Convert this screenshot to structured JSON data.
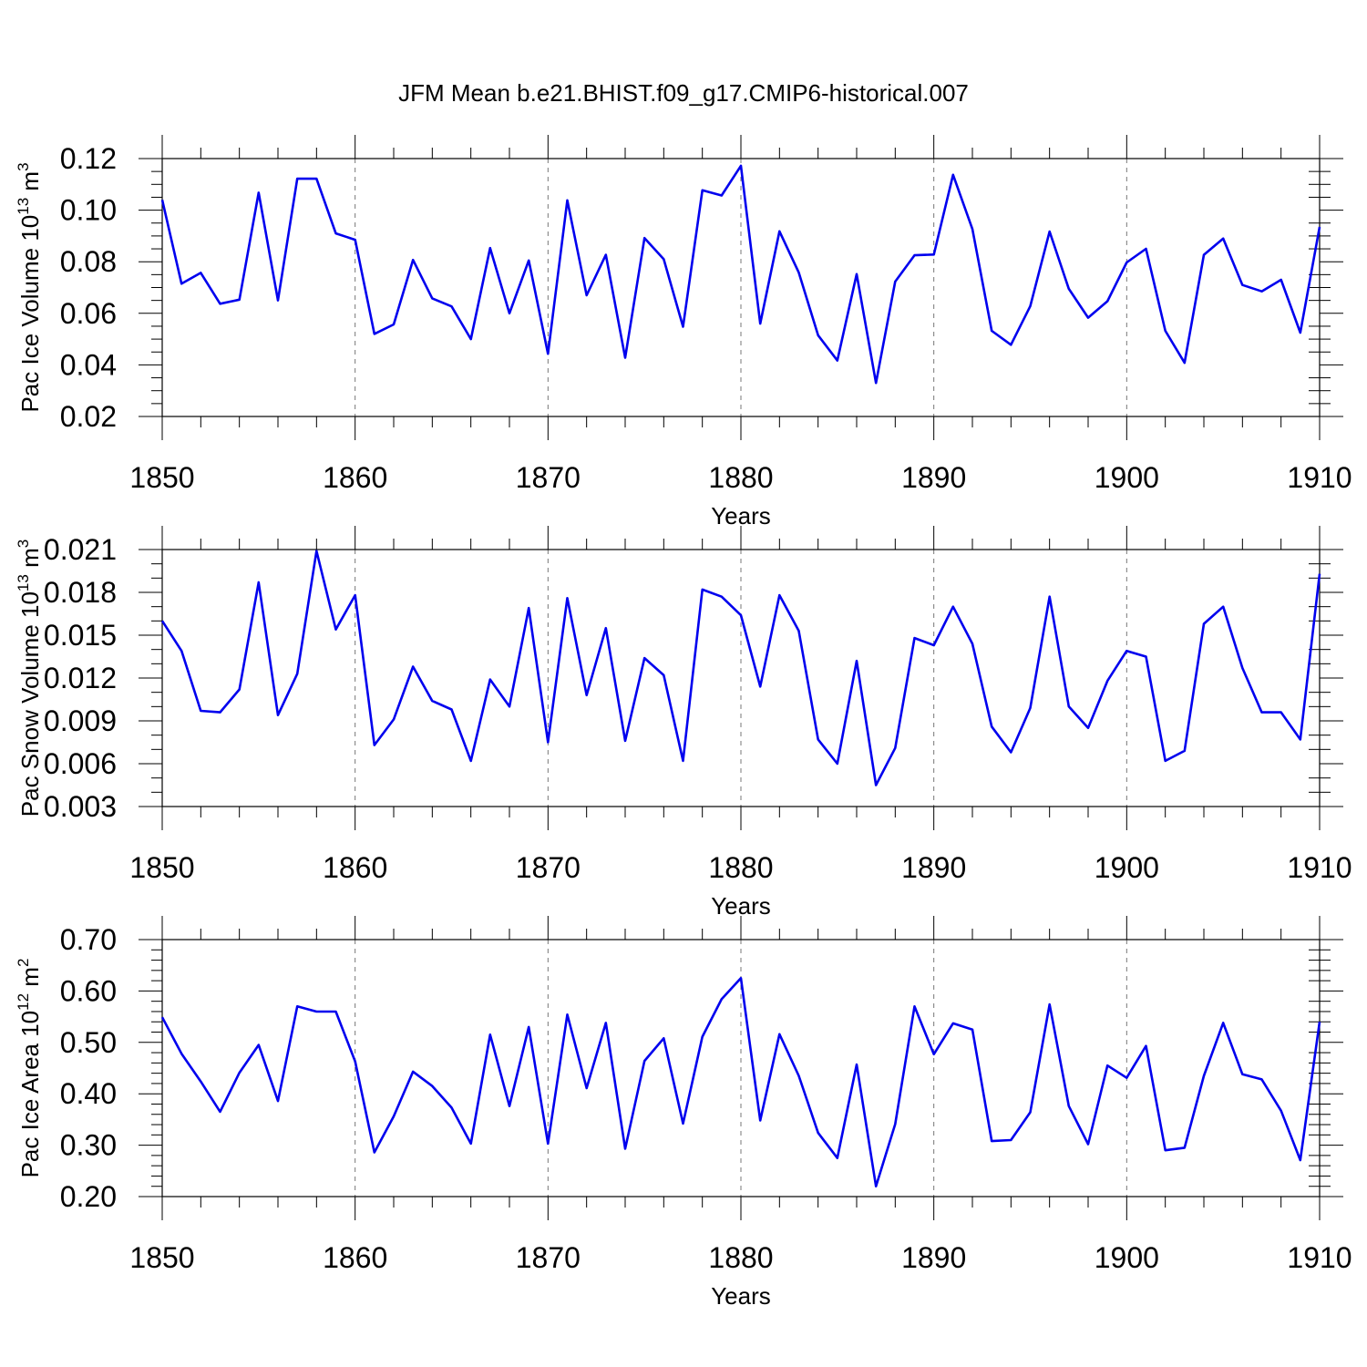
{
  "figure": {
    "title": "JFM Mean b.e21.BHIST.f09_g17.CMIP6-historical.007"
  },
  "chart_data": [
    {
      "type": "line",
      "ylabel_main": "Pac Ice Volume 10",
      "ylabel_exp": "13",
      "ylabel_unit": " m",
      "ylabel_unit_exp": "3",
      "xlabel": "Years",
      "xlim": [
        1850,
        1910
      ],
      "ylim": [
        0.02,
        0.12
      ],
      "xticks": [
        "1850",
        "1860",
        "1870",
        "1880",
        "1890",
        "1900",
        "1910"
      ],
      "xtick_values": [
        1850,
        1860,
        1870,
        1880,
        1890,
        1900,
        1910
      ],
      "yticks": [
        "0.02",
        "0.04",
        "0.06",
        "0.08",
        "0.10",
        "0.12"
      ],
      "ytick_values": [
        0.02,
        0.04,
        0.06,
        0.08,
        0.1,
        0.12
      ],
      "y_minor_step": 0.005,
      "line_color": "#0000ee",
      "grid": "vertical dashed at major x ticks",
      "x": [
        1850,
        1851,
        1852,
        1853,
        1854,
        1855,
        1856,
        1857,
        1858,
        1859,
        1860,
        1861,
        1862,
        1863,
        1864,
        1865,
        1866,
        1867,
        1868,
        1869,
        1870,
        1871,
        1872,
        1873,
        1874,
        1875,
        1876,
        1877,
        1878,
        1879,
        1880,
        1881,
        1882,
        1883,
        1884,
        1885,
        1886,
        1887,
        1888,
        1889,
        1890,
        1891,
        1892,
        1893,
        1894,
        1895,
        1896,
        1897,
        1898,
        1899,
        1900,
        1901,
        1902,
        1903,
        1904,
        1905,
        1906,
        1907,
        1908,
        1909,
        1910
      ],
      "values": [
        0.104,
        0.0715,
        0.0757,
        0.0637,
        0.0653,
        0.1068,
        0.065,
        0.1122,
        0.1122,
        0.091,
        0.0885,
        0.052,
        0.0557,
        0.0807,
        0.0658,
        0.0627,
        0.05,
        0.0853,
        0.06,
        0.0805,
        0.0443,
        0.1038,
        0.067,
        0.0827,
        0.0428,
        0.0892,
        0.081,
        0.0548,
        0.1077,
        0.1057,
        0.1172,
        0.056,
        0.0918,
        0.0758,
        0.0515,
        0.0417,
        0.0752,
        0.033,
        0.0723,
        0.0825,
        0.0828,
        0.1137,
        0.0927,
        0.0532,
        0.0478,
        0.0628,
        0.0917,
        0.0695,
        0.0583,
        0.0647,
        0.0797,
        0.085,
        0.0532,
        0.0408,
        0.0827,
        0.089,
        0.071,
        0.0685,
        0.073,
        0.0525,
        0.0935
      ]
    },
    {
      "type": "line",
      "ylabel_main": "Pac Snow Volume 10",
      "ylabel_exp": "13",
      "ylabel_unit": " m",
      "ylabel_unit_exp": "3",
      "xlabel": "Years",
      "xlim": [
        1850,
        1910
      ],
      "ylim": [
        0.003,
        0.021
      ],
      "xticks": [
        "1850",
        "1860",
        "1870",
        "1880",
        "1890",
        "1900",
        "1910"
      ],
      "xtick_values": [
        1850,
        1860,
        1870,
        1880,
        1890,
        1900,
        1910
      ],
      "yticks": [
        "0.003",
        "0.006",
        "0.009",
        "0.012",
        "0.015",
        "0.018",
        "0.021"
      ],
      "ytick_values": [
        0.003,
        0.006,
        0.009,
        0.012,
        0.015,
        0.018,
        0.021
      ],
      "y_minor_step": 0.001,
      "line_color": "#0000ee",
      "grid": "vertical dashed at major x ticks",
      "x": [
        1850,
        1851,
        1852,
        1853,
        1854,
        1855,
        1856,
        1857,
        1858,
        1859,
        1860,
        1861,
        1862,
        1863,
        1864,
        1865,
        1866,
        1867,
        1868,
        1869,
        1870,
        1871,
        1872,
        1873,
        1874,
        1875,
        1876,
        1877,
        1878,
        1879,
        1880,
        1881,
        1882,
        1883,
        1884,
        1885,
        1886,
        1887,
        1888,
        1889,
        1890,
        1891,
        1892,
        1893,
        1894,
        1895,
        1896,
        1897,
        1898,
        1899,
        1900,
        1901,
        1902,
        1903,
        1904,
        1905,
        1906,
        1907,
        1908,
        1909,
        1910
      ],
      "values": [
        0.016,
        0.0139,
        0.0097,
        0.0096,
        0.0112,
        0.0187,
        0.0094,
        0.0123,
        0.0209,
        0.0154,
        0.0178,
        0.0073,
        0.0091,
        0.0128,
        0.0104,
        0.0098,
        0.0062,
        0.0119,
        0.01,
        0.0169,
        0.0075,
        0.0176,
        0.0108,
        0.0155,
        0.0076,
        0.0134,
        0.0122,
        0.0062,
        0.0182,
        0.0177,
        0.0164,
        0.0114,
        0.0178,
        0.0153,
        0.0077,
        0.006,
        0.0132,
        0.0045,
        0.0071,
        0.0148,
        0.0143,
        0.017,
        0.0144,
        0.0086,
        0.0068,
        0.0099,
        0.0177,
        0.01,
        0.0085,
        0.0118,
        0.0139,
        0.0135,
        0.0062,
        0.0069,
        0.0158,
        0.017,
        0.0127,
        0.0096,
        0.0096,
        0.0077,
        0.0193
      ]
    },
    {
      "type": "line",
      "ylabel_main": "Pac Ice Area 10",
      "ylabel_exp": "12",
      "ylabel_unit": " m",
      "ylabel_unit_exp": "2",
      "xlabel": "Years",
      "xlim": [
        1850,
        1910
      ],
      "ylim": [
        0.2,
        0.7
      ],
      "xticks": [
        "1850",
        "1860",
        "1870",
        "1880",
        "1890",
        "1900",
        "1910"
      ],
      "xtick_values": [
        1850,
        1860,
        1870,
        1880,
        1890,
        1900,
        1910
      ],
      "yticks": [
        "0.20",
        "0.30",
        "0.40",
        "0.50",
        "0.60",
        "0.70"
      ],
      "ytick_values": [
        0.2,
        0.3,
        0.4,
        0.5,
        0.6,
        0.7
      ],
      "y_minor_step": 0.02,
      "line_color": "#0000ee",
      "grid": "vertical dashed at major x ticks",
      "x": [
        1850,
        1851,
        1852,
        1853,
        1854,
        1855,
        1856,
        1857,
        1858,
        1859,
        1860,
        1861,
        1862,
        1863,
        1864,
        1865,
        1866,
        1867,
        1868,
        1869,
        1870,
        1871,
        1872,
        1873,
        1874,
        1875,
        1876,
        1877,
        1878,
        1879,
        1880,
        1881,
        1882,
        1883,
        1884,
        1885,
        1886,
        1887,
        1888,
        1889,
        1890,
        1891,
        1892,
        1893,
        1894,
        1895,
        1896,
        1897,
        1898,
        1899,
        1900,
        1901,
        1902,
        1903,
        1904,
        1905,
        1906,
        1907,
        1908,
        1909,
        1910
      ],
      "values": [
        0.549,
        0.478,
        0.424,
        0.365,
        0.441,
        0.495,
        0.386,
        0.57,
        0.56,
        0.56,
        0.463,
        0.286,
        0.356,
        0.443,
        0.415,
        0.373,
        0.303,
        0.515,
        0.376,
        0.53,
        0.303,
        0.554,
        0.411,
        0.538,
        0.293,
        0.464,
        0.508,
        0.342,
        0.511,
        0.584,
        0.625,
        0.348,
        0.516,
        0.435,
        0.324,
        0.275,
        0.457,
        0.22,
        0.341,
        0.57,
        0.477,
        0.537,
        0.525,
        0.308,
        0.31,
        0.364,
        0.574,
        0.376,
        0.302,
        0.455,
        0.431,
        0.493,
        0.29,
        0.295,
        0.435,
        0.538,
        0.438,
        0.428,
        0.367,
        0.271,
        0.54
      ]
    }
  ]
}
